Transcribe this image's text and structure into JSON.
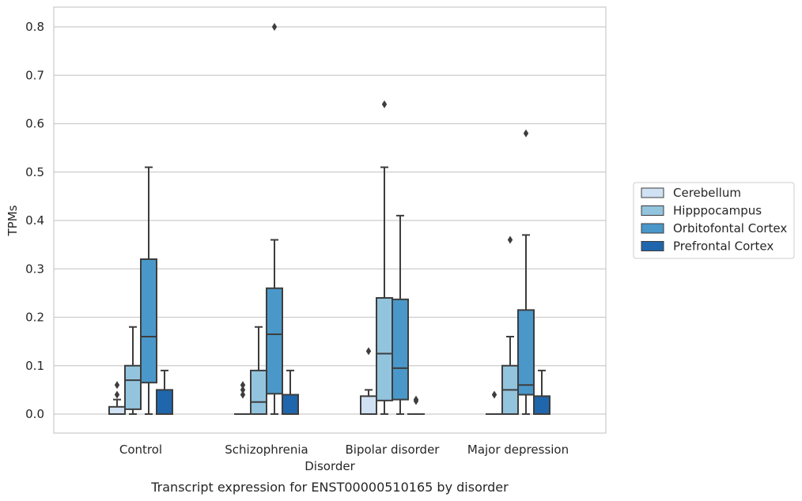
{
  "chart_data": {
    "type": "box",
    "title": "",
    "caption": "Transcript expression for ENST00000510165 by disorder",
    "xlabel": "Disorder",
    "ylabel": "TPMs",
    "ylim": [
      -0.04,
      0.84
    ],
    "yticks": [
      "0.0",
      "0.1",
      "0.2",
      "0.3",
      "0.4",
      "0.5",
      "0.6",
      "0.7",
      "0.8"
    ],
    "ytick_values": [
      0,
      0.1,
      0.2,
      0.3,
      0.4,
      0.5,
      0.6,
      0.7,
      0.8
    ],
    "grid": "horizontal",
    "legend_position": "right",
    "categories": [
      "Control",
      "Schizophrenia",
      "Bipolar disorder",
      "Major depression"
    ],
    "series": [
      {
        "name": "Cerebellum",
        "color": "#cfe1f2",
        "boxes": [
          {
            "whislo": 0.0,
            "q1": 0.0,
            "med": 0.0,
            "q3": 0.015,
            "whishi": 0.03,
            "fliers": [
              0.04,
              0.06
            ]
          },
          {
            "whislo": 0.0,
            "q1": 0.0,
            "med": 0.0,
            "q3": 0.0,
            "whishi": 0.0,
            "fliers": [
              0.04,
              0.05,
              0.06
            ]
          },
          {
            "whislo": 0.0,
            "q1": 0.0,
            "med": 0.0,
            "q3": 0.037,
            "whishi": 0.05,
            "fliers": [
              0.13
            ]
          },
          {
            "whislo": 0.0,
            "q1": 0.0,
            "med": 0.0,
            "q3": 0.0,
            "whishi": 0.0,
            "fliers": [
              0.04
            ]
          }
        ]
      },
      {
        "name": "Hipppocampus",
        "color": "#93c4de",
        "boxes": [
          {
            "whislo": 0.0,
            "q1": 0.01,
            "med": 0.07,
            "q3": 0.1,
            "whishi": 0.18,
            "fliers": []
          },
          {
            "whislo": 0.0,
            "q1": 0.0,
            "med": 0.025,
            "q3": 0.09,
            "whishi": 0.18,
            "fliers": []
          },
          {
            "whislo": 0.0,
            "q1": 0.028,
            "med": 0.125,
            "q3": 0.24,
            "whishi": 0.51,
            "fliers": [
              0.64
            ]
          },
          {
            "whislo": 0.0,
            "q1": 0.0,
            "med": 0.05,
            "q3": 0.1,
            "whishi": 0.16,
            "fliers": [
              0.36
            ]
          }
        ]
      },
      {
        "name": "Orbitofontal Cortex",
        "color": "#4a98c9",
        "boxes": [
          {
            "whislo": 0.0,
            "q1": 0.065,
            "med": 0.16,
            "q3": 0.32,
            "whishi": 0.51,
            "fliers": []
          },
          {
            "whislo": 0.0,
            "q1": 0.042,
            "med": 0.165,
            "q3": 0.26,
            "whishi": 0.36,
            "fliers": [
              0.8
            ]
          },
          {
            "whislo": 0.0,
            "q1": 0.03,
            "med": 0.095,
            "q3": 0.237,
            "whishi": 0.41,
            "fliers": []
          },
          {
            "whislo": 0.0,
            "q1": 0.04,
            "med": 0.06,
            "q3": 0.215,
            "whishi": 0.37,
            "fliers": [
              0.58
            ]
          }
        ]
      },
      {
        "name": "Prefrontal Cortex",
        "color": "#2066ac",
        "boxes": [
          {
            "whislo": 0.0,
            "q1": 0.0,
            "med": 0.0,
            "q3": 0.05,
            "whishi": 0.09,
            "fliers": []
          },
          {
            "whislo": 0.0,
            "q1": 0.0,
            "med": 0.0,
            "q3": 0.04,
            "whishi": 0.09,
            "fliers": []
          },
          {
            "whislo": 0.0,
            "q1": 0.0,
            "med": 0.0,
            "q3": 0.0,
            "whishi": 0.0,
            "fliers": [
              0.027,
              0.03
            ]
          },
          {
            "whislo": 0.0,
            "q1": 0.0,
            "med": 0.0,
            "q3": 0.037,
            "whishi": 0.09,
            "fliers": []
          }
        ]
      }
    ]
  }
}
